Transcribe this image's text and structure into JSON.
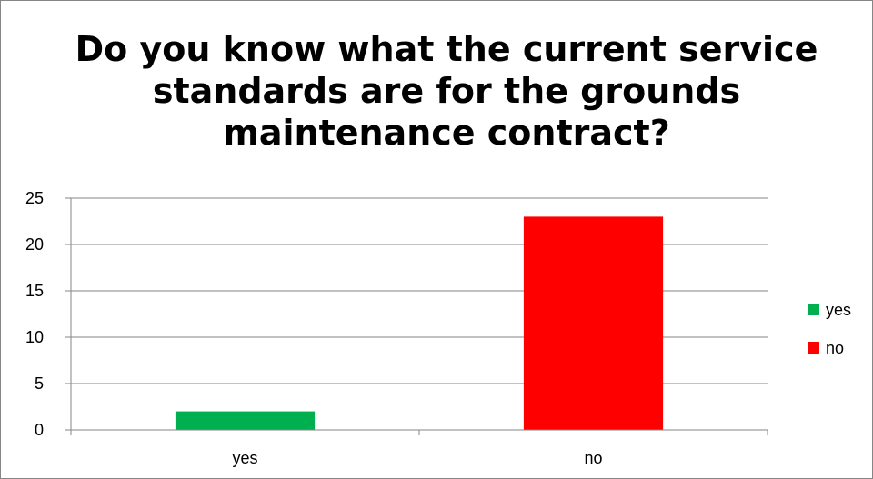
{
  "chart_data": {
    "type": "bar",
    "title": "Do you know what the current service standards are for the grounds maintenance contract?",
    "categories": [
      "yes",
      "no"
    ],
    "values": [
      2,
      23
    ],
    "colors": [
      "#00b050",
      "#ff0000"
    ],
    "ylim": [
      0,
      25
    ],
    "yticks": [
      0,
      5,
      10,
      15,
      20,
      25
    ],
    "xlabel": "",
    "ylabel": "",
    "grid": true,
    "legend": {
      "position": "right",
      "entries": [
        {
          "label": "yes",
          "color": "#00b050"
        },
        {
          "label": "no",
          "color": "#ff0000"
        }
      ]
    }
  }
}
